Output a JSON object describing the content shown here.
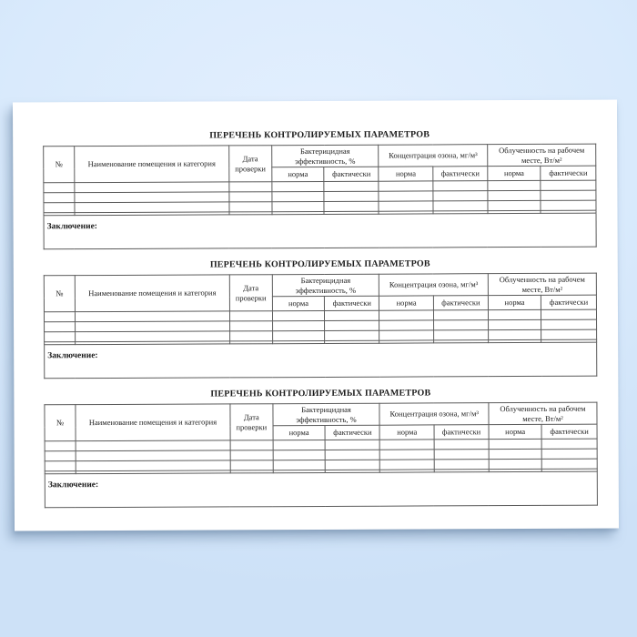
{
  "background_color": "#d9eafc",
  "paper_color": "#ffffff",
  "table_border_color": "#5b5b5b",
  "text_color": "#1c1c1c",
  "document": {
    "sections": [
      {
        "title": "ПЕРЕЧЕНЬ КОНТРОЛИРУЕМЫХ ПАРАМЕТРОВ",
        "columns": {
          "number": "№",
          "room_name": "Наименование помещения и категория",
          "check_date": "Дата проверки",
          "bactericidal_effectiveness": "Бактерицидная эффективность, %",
          "ozone_concentration": "Концентрация озона, мг/м³",
          "workplace_irradiance": "Облученность на рабочем месте, Вт/м²",
          "norm": "норма",
          "actual": "фактически"
        },
        "empty_row_count": 3,
        "conclusion_label": "Заключение:"
      },
      {
        "title": "ПЕРЕЧЕНЬ КОНТРОЛИРУЕМЫХ ПАРАМЕТРОВ",
        "columns": {
          "number": "№",
          "room_name": "Наименование помещения и категория",
          "check_date": "Дата проверки",
          "bactericidal_effectiveness": "Бактерицидная эффективность, %",
          "ozone_concentration": "Концентрация озона, мг/м³",
          "workplace_irradiance": "Облученность на рабочем месте, Вт/м²",
          "norm": "норма",
          "actual": "фактически"
        },
        "empty_row_count": 3,
        "conclusion_label": "Заключение:"
      },
      {
        "title": "ПЕРЕЧЕНЬ КОНТРОЛИРУЕМЫХ ПАРАМЕТРОВ",
        "columns": {
          "number": "№",
          "room_name": "Наименование помещения и категория",
          "check_date": "Дата проверки",
          "bactericidal_effectiveness": "Бактерицидная эффективность, %",
          "ozone_concentration": "Концентрация озона, мг/м³",
          "workplace_irradiance": "Облученность на рабочем месте, Вт/м²",
          "norm": "норма",
          "actual": "фактически"
        },
        "empty_row_count": 3,
        "conclusion_label": "Заключение:"
      }
    ]
  }
}
